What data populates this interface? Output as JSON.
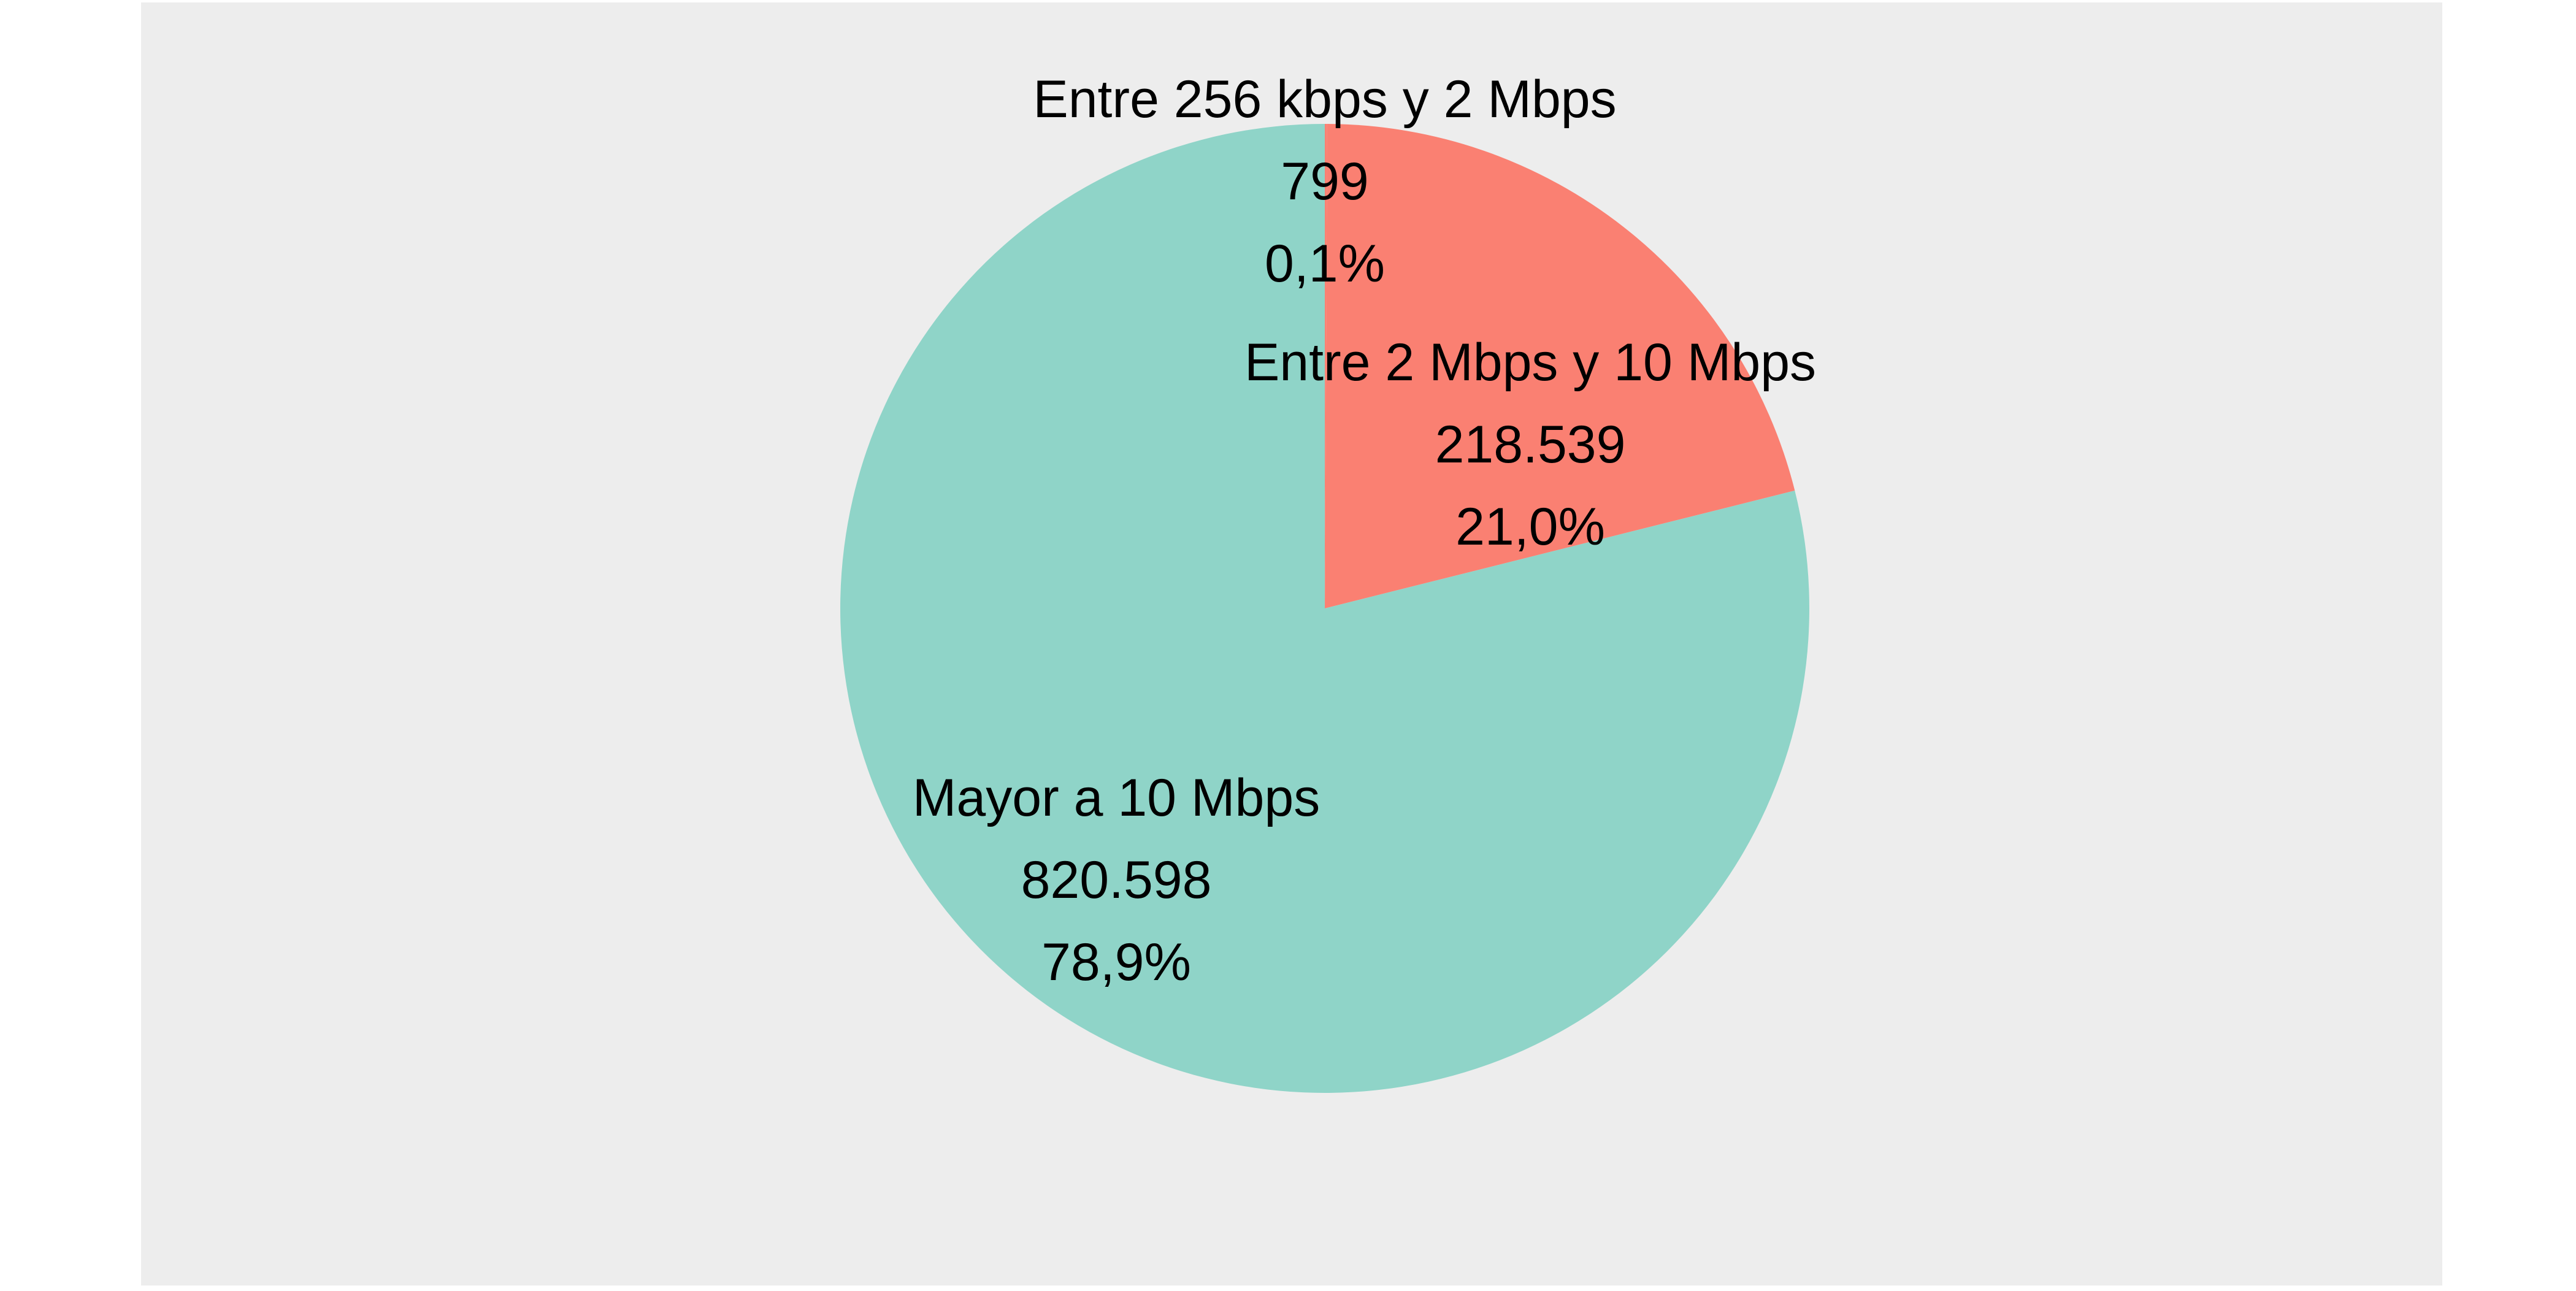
{
  "chart_data": {
    "type": "pie",
    "title": "",
    "start_angle_deg": 0,
    "direction": "clockwise",
    "legend": "none",
    "slices": [
      {
        "label": "Entre 256 kbps y 2 Mbps",
        "value": 799,
        "value_label": "799",
        "percent_label": "0,1%",
        "color": "#FA8072"
      },
      {
        "label": "Entre 2 Mbps y 10 Mbps",
        "value": 218539,
        "value_label": "218.539",
        "percent_label": "21,0%",
        "color": "#FA8072"
      },
      {
        "label": "Mayor a 10 Mbps",
        "value": 820598,
        "value_label": "820.598",
        "percent_label": "78,9%",
        "color": "#8FD4C8"
      }
    ],
    "colors": {
      "panel_background": "#EDEDED",
      "page_background": "#FFFFFF"
    }
  }
}
